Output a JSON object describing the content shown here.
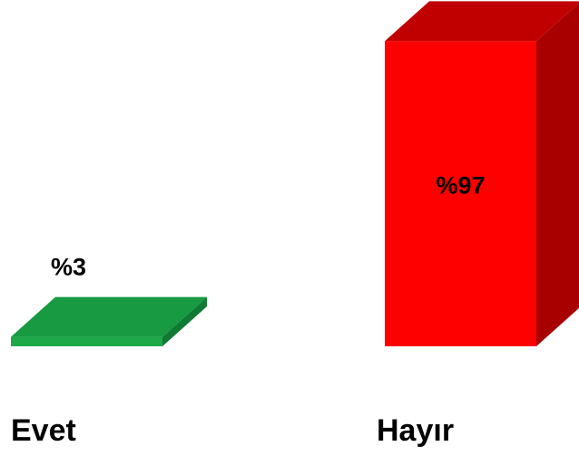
{
  "chart_data": {
    "type": "bar",
    "categories": [
      "Evet",
      "Hayır"
    ],
    "values": [
      3,
      97
    ],
    "value_labels": [
      "%3",
      "%97"
    ],
    "ylim": [
      0,
      100
    ],
    "grid": false,
    "legend": "none",
    "colors": {
      "Evet": {
        "front": "#1fa84a",
        "top": "#179a42",
        "side": "#0e7a32"
      },
      "Hayır": {
        "front": "#ff0000",
        "top": "#c00000",
        "side": "#a80000"
      }
    }
  }
}
